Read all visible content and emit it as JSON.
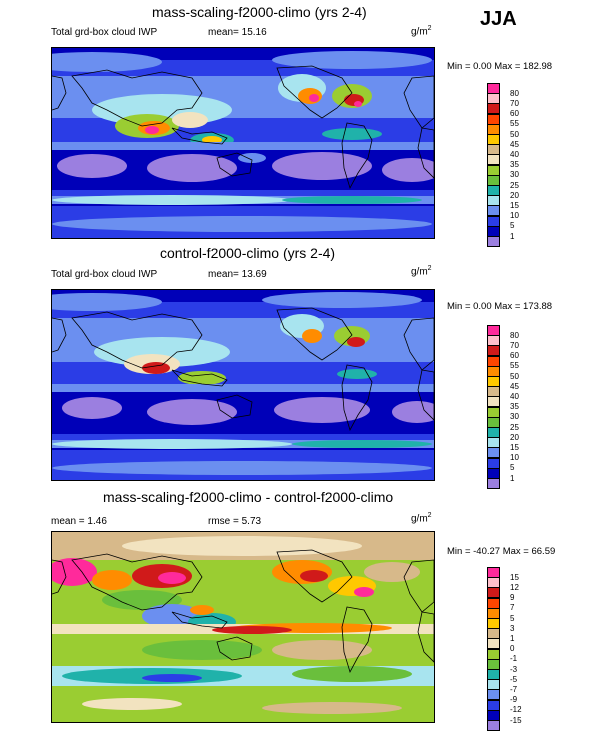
{
  "season": "JJA",
  "panels": [
    {
      "title": "mass-scaling-f2000-climo (yrs 2-4)",
      "left_text": "Total grd-box cloud IWP",
      "stat1": "mean=  15.16",
      "stat2": "",
      "units": "g/m",
      "units_sup": "2",
      "minmax": "Min =   0.00 Max = 182.98"
    },
    {
      "title": "control-f2000-climo (yrs 2-4)",
      "left_text": "Total grd-box cloud IWP",
      "stat1": "mean=  13.69",
      "stat2": "",
      "units": "g/m",
      "units_sup": "2",
      "minmax": "Min =   0.00 Max = 173.88"
    },
    {
      "title": "mass-scaling-f2000-climo - control-f2000-climo",
      "left_text": "mean =   1.46",
      "stat1": "rmse =   5.73",
      "stat2": "",
      "units": "g/m",
      "units_sup": "2",
      "minmax": "Min = -40.27 Max =  66.59"
    }
  ],
  "colorbars": {
    "absolute": {
      "labels": [
        "80",
        "70",
        "60",
        "55",
        "50",
        "45",
        "40",
        "35",
        "30",
        "25",
        "20",
        "15",
        "10",
        "5",
        "1"
      ],
      "colors": [
        "#ff2a9b",
        "#ffc0cb",
        "#d01a1a",
        "#ff4500",
        "#ff8c00",
        "#ffc800",
        "#d7b98a",
        "#f2e3c0",
        "#9acd32",
        "#6abf3c",
        "#20b2aa",
        "#a8e4ef",
        "#6b8ff0",
        "#2b3de6",
        "#0000b8",
        "#9b7fe0"
      ]
    },
    "difference": {
      "labels": [
        "15",
        "12",
        "9",
        "7",
        "5",
        "3",
        "1",
        "0",
        "-1",
        "-3",
        "-5",
        "-7",
        "-9",
        "-12",
        "-15"
      ],
      "colors": [
        "#ff2a9b",
        "#ffc0cb",
        "#d01a1a",
        "#ff4500",
        "#ff8c00",
        "#ffc800",
        "#d7b98a",
        "#f2e3c0",
        "#9acd32",
        "#6abf3c",
        "#20b2aa",
        "#a8e4ef",
        "#6b8ff0",
        "#2b3de6",
        "#0000b8",
        "#9b7fe0"
      ]
    }
  },
  "chart_data": [
    {
      "type": "heatmap",
      "title": "mass-scaling-f2000-climo (yrs 2-4)",
      "subtitle": "Total grd-box cloud IWP",
      "mean": 15.16,
      "min": 0.0,
      "max": 182.98,
      "units": "g/m2",
      "levels": [
        1,
        5,
        10,
        15,
        20,
        25,
        30,
        35,
        40,
        45,
        50,
        55,
        60,
        70,
        80
      ],
      "projection": "global lat-lon",
      "season": "JJA"
    },
    {
      "type": "heatmap",
      "title": "control-f2000-climo (yrs 2-4)",
      "subtitle": "Total grd-box cloud IWP",
      "mean": 13.69,
      "min": 0.0,
      "max": 173.88,
      "units": "g/m2",
      "levels": [
        1,
        5,
        10,
        15,
        20,
        25,
        30,
        35,
        40,
        45,
        50,
        55,
        60,
        70,
        80
      ],
      "projection": "global lat-lon",
      "season": "JJA"
    },
    {
      "type": "heatmap",
      "title": "mass-scaling-f2000-climo - control-f2000-climo",
      "mean": 1.46,
      "rmse": 5.73,
      "min": -40.27,
      "max": 66.59,
      "units": "g/m2",
      "levels": [
        -15,
        -12,
        -9,
        -7,
        -5,
        -3,
        -1,
        0,
        1,
        3,
        5,
        7,
        9,
        12,
        15
      ],
      "projection": "global lat-lon",
      "season": "JJA"
    }
  ]
}
